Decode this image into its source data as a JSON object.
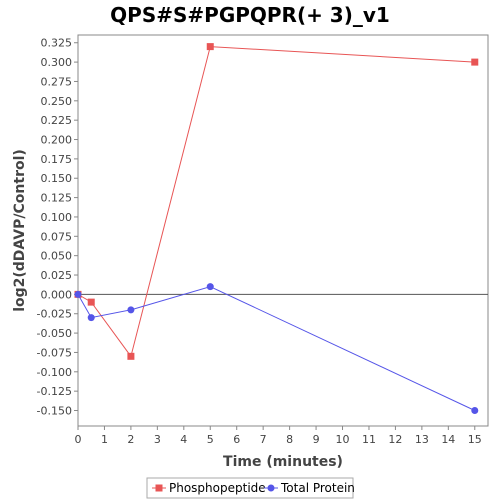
{
  "chart_data": {
    "type": "line",
    "title": "QPS#S#PGPQPR(+ 3)_v1",
    "xlabel": "Time (minutes)",
    "ylabel": "log2(dDAVP/Control)",
    "xlim": [
      0,
      15.5
    ],
    "ylim": [
      -0.17,
      0.335
    ],
    "x_ticks": [
      0,
      1,
      2,
      3,
      4,
      5,
      6,
      7,
      8,
      9,
      10,
      11,
      12,
      13,
      14,
      15
    ],
    "y_ticks": [
      -0.15,
      -0.125,
      -0.1,
      -0.075,
      -0.05,
      -0.025,
      0.0,
      0.025,
      0.05,
      0.075,
      0.1,
      0.125,
      0.15,
      0.175,
      0.2,
      0.225,
      0.25,
      0.275,
      0.3,
      0.325
    ],
    "zero_line": true,
    "grid": false,
    "legend_position": "bottom",
    "series": [
      {
        "name": "Phosphopeptide",
        "color": "#e85555",
        "marker": "square",
        "x": [
          0,
          0.5,
          2,
          5,
          15
        ],
        "y": [
          0.0,
          -0.01,
          -0.08,
          0.32,
          0.3
        ]
      },
      {
        "name": "Total Protein",
        "color": "#5555e8",
        "marker": "circle",
        "x": [
          0,
          0.5,
          2,
          5,
          15
        ],
        "y": [
          0.0,
          -0.03,
          -0.02,
          0.01,
          -0.15
        ]
      }
    ]
  }
}
